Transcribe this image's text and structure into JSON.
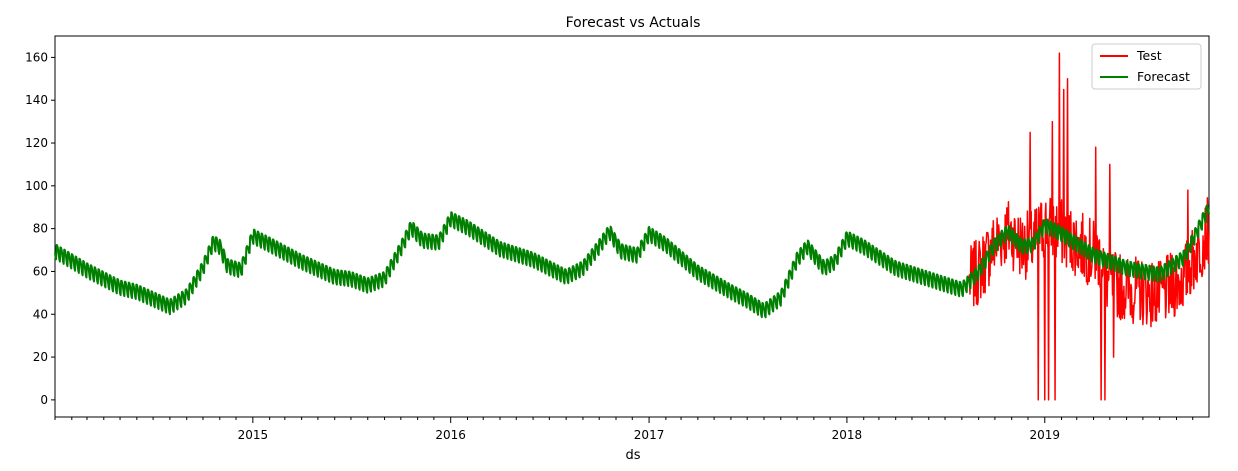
{
  "chart_data": {
    "type": "line",
    "title": "Forecast vs Actuals",
    "xlabel": "ds",
    "ylabel": "",
    "x_axis": "date",
    "xlim": [
      "2014-01-01",
      "2019-10-31"
    ],
    "ylim": [
      -8,
      170
    ],
    "xticks": [
      "2015",
      "2016",
      "2017",
      "2018",
      "2019"
    ],
    "yticks": [
      0,
      20,
      40,
      60,
      80,
      100,
      120,
      140,
      160
    ],
    "grid": false,
    "legend": {
      "position": "top-right",
      "entries": [
        "Test",
        "Forecast"
      ]
    },
    "series": [
      {
        "name": "Forecast",
        "color": "#008000",
        "weekly_amplitude": 4,
        "points": [
          [
            "2014-01-01",
            70
          ],
          [
            "2014-03-01",
            61
          ],
          [
            "2014-05-01",
            53
          ],
          [
            "2014-06-01",
            51
          ],
          [
            "2014-07-15",
            46
          ],
          [
            "2014-08-01",
            44
          ],
          [
            "2014-09-01",
            49
          ],
          [
            "2014-10-01",
            62
          ],
          [
            "2014-10-20",
            74
          ],
          [
            "2014-11-01",
            72
          ],
          [
            "2014-11-15",
            63
          ],
          [
            "2014-12-10",
            61
          ],
          [
            "2015-01-01",
            77
          ],
          [
            "2015-02-01",
            73
          ],
          [
            "2015-04-01",
            65
          ],
          [
            "2015-06-01",
            58
          ],
          [
            "2015-07-01",
            57
          ],
          [
            "2015-08-01",
            54
          ],
          [
            "2015-09-01",
            57
          ],
          [
            "2015-10-01",
            71
          ],
          [
            "2015-10-20",
            81
          ],
          [
            "2015-11-10",
            75
          ],
          [
            "2015-12-10",
            74
          ],
          [
            "2016-01-01",
            85
          ],
          [
            "2016-02-01",
            81
          ],
          [
            "2016-04-01",
            71
          ],
          [
            "2016-06-01",
            66
          ],
          [
            "2016-08-01",
            58
          ],
          [
            "2016-09-01",
            62
          ],
          [
            "2016-10-01",
            72
          ],
          [
            "2016-10-20",
            79
          ],
          [
            "2016-11-10",
            70
          ],
          [
            "2016-12-10",
            68
          ],
          [
            "2017-01-01",
            78
          ],
          [
            "2017-02-01",
            73
          ],
          [
            "2017-04-01",
            60
          ],
          [
            "2017-06-01",
            51
          ],
          [
            "2017-07-01",
            47
          ],
          [
            "2017-08-01",
            42
          ],
          [
            "2017-09-01",
            48
          ],
          [
            "2017-10-01",
            66
          ],
          [
            "2017-10-20",
            72
          ],
          [
            "2017-11-20",
            62
          ],
          [
            "2017-12-10",
            65
          ],
          [
            "2018-01-01",
            76
          ],
          [
            "2018-02-01",
            72
          ],
          [
            "2018-04-01",
            62
          ],
          [
            "2018-06-01",
            57
          ],
          [
            "2018-08-01",
            52
          ],
          [
            "2018-09-01",
            60
          ],
          [
            "2018-10-01",
            73
          ],
          [
            "2018-10-25",
            79
          ],
          [
            "2018-11-20",
            72
          ],
          [
            "2018-12-10",
            73
          ],
          [
            "2019-01-01",
            82
          ],
          [
            "2019-02-01",
            78
          ],
          [
            "2019-04-01",
            68
          ],
          [
            "2019-06-01",
            62
          ],
          [
            "2019-08-01",
            59
          ],
          [
            "2019-09-15",
            67
          ],
          [
            "2019-10-31",
            90
          ]
        ]
      },
      {
        "name": "Test",
        "color": "#ff0000",
        "start": "2018-08-15",
        "end": "2019-10-31",
        "noise": 16,
        "spikes": [
          [
            "2018-12-05",
            125
          ],
          [
            "2018-12-20",
            0
          ],
          [
            "2019-01-01",
            0
          ],
          [
            "2019-01-08",
            0
          ],
          [
            "2019-01-15",
            130
          ],
          [
            "2019-01-28",
            162
          ],
          [
            "2019-02-05",
            145
          ],
          [
            "2019-02-12",
            150
          ],
          [
            "2019-01-20",
            0
          ],
          [
            "2019-04-05",
            118
          ],
          [
            "2019-04-15",
            0
          ],
          [
            "2019-04-22",
            0
          ],
          [
            "2019-05-01",
            110
          ],
          [
            "2019-05-08",
            20
          ],
          [
            "2019-09-22",
            98
          ]
        ]
      }
    ]
  }
}
